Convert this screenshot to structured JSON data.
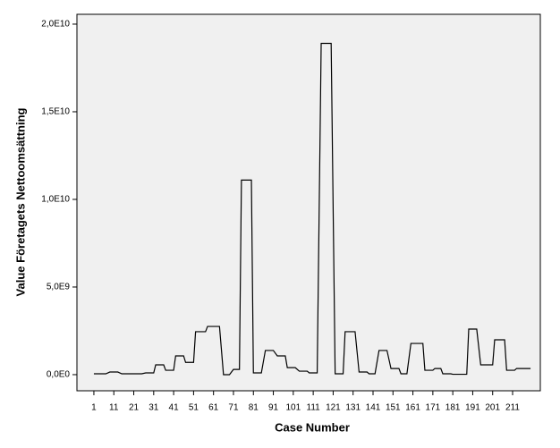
{
  "chart_data": {
    "type": "line",
    "x_label": "Case Number",
    "y_label": "Value Företagets Nettoomsättning",
    "x": [
      1,
      7,
      9,
      13,
      15,
      25,
      27,
      31,
      32,
      36,
      37,
      41,
      42,
      46,
      47,
      51,
      52,
      57,
      58,
      64,
      66,
      69,
      71,
      74,
      75,
      80,
      81,
      85,
      87,
      91,
      93,
      97,
      98,
      102,
      104,
      108,
      109,
      113,
      115,
      120,
      122,
      126,
      127,
      132,
      134,
      138,
      139,
      142,
      144,
      148,
      150,
      154,
      155,
      158,
      160,
      166,
      167,
      171,
      172,
      175,
      176,
      180,
      181,
      188,
      189,
      193,
      195,
      201,
      202,
      207,
      208,
      212,
      213,
      220
    ],
    "series": [
      {
        "name": "Value Företagets Nettoomsättning",
        "color": "#000000",
        "values": [
          50000000,
          50000000,
          150000000,
          150000000,
          50000000,
          50000000,
          100000000,
          100000000,
          560000000,
          560000000,
          250000000,
          250000000,
          1070000000,
          1070000000,
          700000000,
          700000000,
          2450000000,
          2450000000,
          2750000000,
          2750000000,
          0,
          0,
          300000000,
          300000000,
          11100000000,
          11100000000,
          100000000,
          100000000,
          1380000000,
          1380000000,
          1070000000,
          1070000000,
          400000000,
          400000000,
          200000000,
          200000000,
          100000000,
          100000000,
          18900000000,
          18900000000,
          50000000,
          50000000,
          2450000000,
          2450000000,
          150000000,
          150000000,
          50000000,
          50000000,
          1380000000,
          1380000000,
          350000000,
          350000000,
          50000000,
          50000000,
          1780000000,
          1780000000,
          250000000,
          250000000,
          350000000,
          350000000,
          50000000,
          50000000,
          20000000,
          20000000,
          2600000000,
          2600000000,
          560000000,
          560000000,
          1990000000,
          1990000000,
          250000000,
          250000000,
          350000000,
          350000000
        ]
      }
    ],
    "xlim": [
      -7.5,
      224.9
    ],
    "xticks": [
      1,
      11,
      21,
      31,
      41,
      51,
      61,
      71,
      81,
      91,
      101,
      111,
      121,
      131,
      141,
      151,
      161,
      171,
      181,
      191,
      201,
      211
    ],
    "ylim": [
      -920000000,
      20560000000
    ],
    "yticks": [
      {
        "value": 0,
        "label": "0,0E0"
      },
      {
        "value": 5000000000,
        "label": "5,0E9"
      },
      {
        "value": 10000000000,
        "label": "1,0E10"
      },
      {
        "value": 15000000000,
        "label": "1,5E10"
      },
      {
        "value": 20000000000,
        "label": "2,0E10"
      }
    ],
    "grid": false
  }
}
